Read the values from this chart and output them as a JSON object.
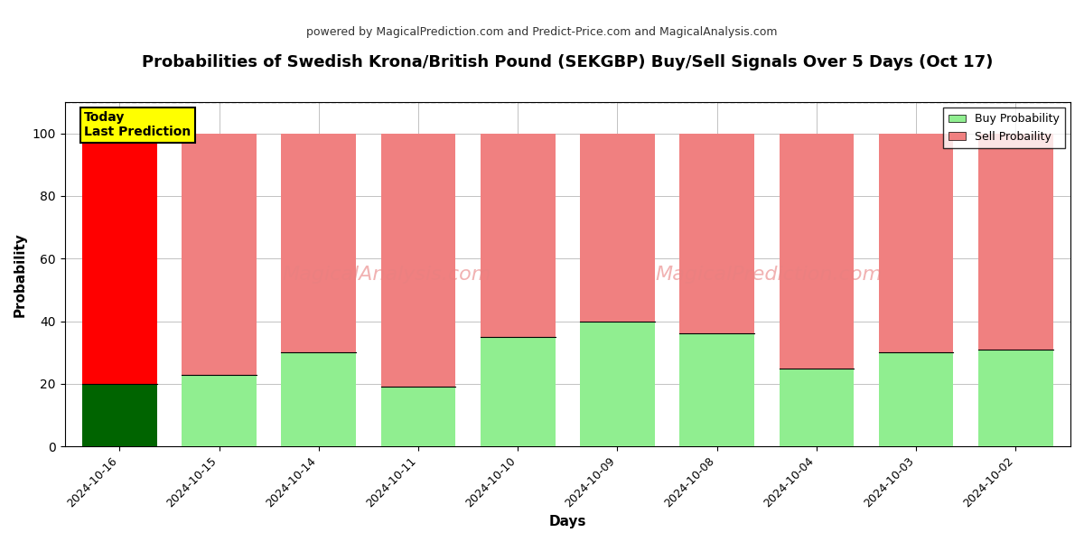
{
  "title": "Probabilities of Swedish Krona/British Pound (SEKGBP) Buy/Sell Signals Over 5 Days (Oct 17)",
  "subtitle": "powered by MagicalPrediction.com and Predict-Price.com and MagicalAnalysis.com",
  "xlabel": "Days",
  "ylabel": "Probability",
  "categories": [
    "2024-10-16",
    "2024-10-15",
    "2024-10-14",
    "2024-10-11",
    "2024-10-10",
    "2024-10-09",
    "2024-10-08",
    "2024-10-04",
    "2024-10-03",
    "2024-10-02"
  ],
  "buy_values": [
    20,
    23,
    30,
    19,
    35,
    40,
    36,
    25,
    30,
    31
  ],
  "sell_values": [
    80,
    77,
    70,
    81,
    65,
    60,
    64,
    75,
    70,
    69
  ],
  "today_buy_color": "#006400",
  "today_sell_color": "#ff0000",
  "buy_color": "#90EE90",
  "sell_color": "#F08080",
  "today_label_bg": "#ffff00",
  "today_label_text": "Today\nLast Prediction",
  "legend_buy": "Buy Probability",
  "legend_sell": "Sell Probaility",
  "ylim": [
    0,
    110
  ],
  "yticks": [
    0,
    20,
    40,
    60,
    80,
    100
  ],
  "dashed_line_y": 110,
  "background_color": "#ffffff",
  "grid_color": "#aaaaaa",
  "title_fontsize": 13,
  "subtitle_fontsize": 9,
  "bar_width": 0.75
}
